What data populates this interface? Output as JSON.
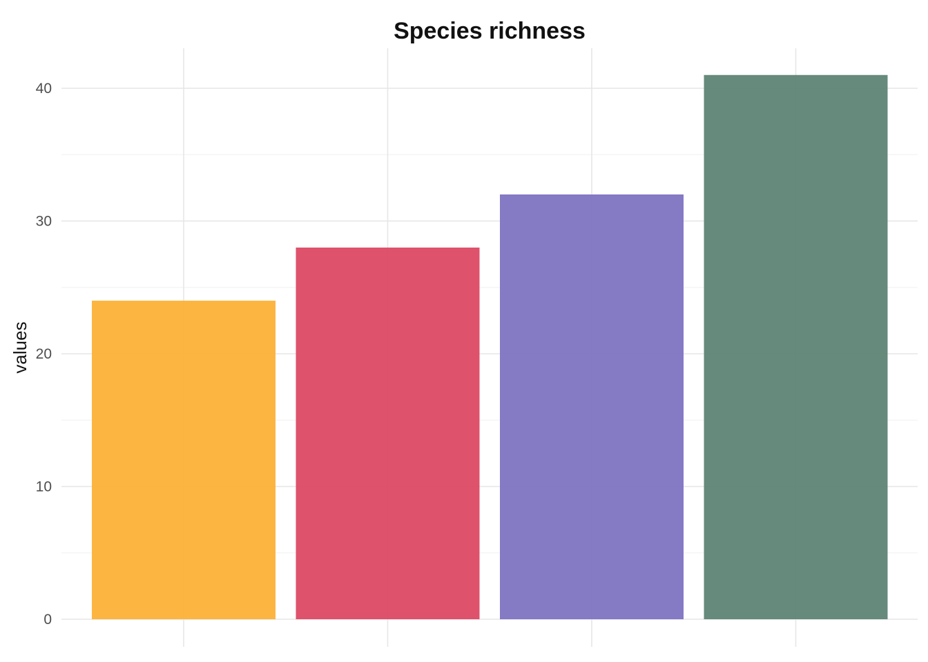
{
  "chart_data": {
    "type": "bar",
    "title": "Species richness",
    "xlabel": "",
    "ylabel": "values",
    "categories": [
      "",
      "",
      "",
      ""
    ],
    "values": [
      24,
      28,
      32,
      41
    ],
    "colors": [
      "#FDB137",
      "#DC4964",
      "#7E73C1",
      "#5E8474"
    ],
    "ylim": [
      0,
      43
    ],
    "yticks": [
      0,
      10,
      20,
      30,
      40
    ],
    "ytick_labels": [
      "0",
      "10",
      "20",
      "30",
      "40"
    ],
    "grid": true,
    "legend": "none"
  }
}
